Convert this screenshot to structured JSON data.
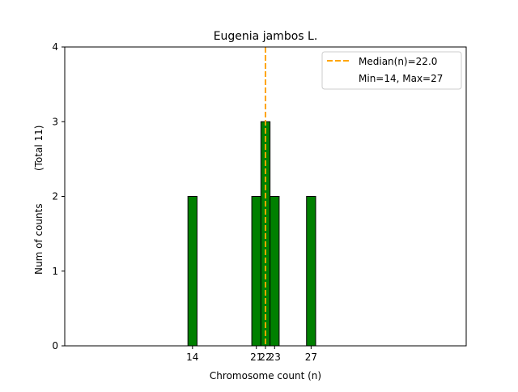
{
  "chart_data": {
    "type": "bar",
    "title": "Eugenia jambos L.",
    "xlabel": "Chromosome count (n)",
    "ylabel": "Num of counts",
    "ylabel_total": "(Total 11)",
    "x_ticks": [
      14,
      21,
      22,
      23,
      27
    ],
    "y_ticks": [
      0,
      1,
      2,
      3,
      4
    ],
    "xlim": [
      0,
      44
    ],
    "ylim": [
      0,
      4
    ],
    "bins": [
      {
        "x": 14,
        "count": 2
      },
      {
        "x": 21,
        "count": 2
      },
      {
        "x": 22,
        "count": 3
      },
      {
        "x": 23,
        "count": 2
      },
      {
        "x": 27,
        "count": 2
      }
    ],
    "median": 22.0,
    "legend": {
      "position": "top-right",
      "entries": [
        "Median(n)=22.0",
        "Min=14, Max=27"
      ]
    },
    "colors": {
      "bar": "#008000",
      "bar_edge": "#000000",
      "median_line": "#FFA500"
    }
  }
}
